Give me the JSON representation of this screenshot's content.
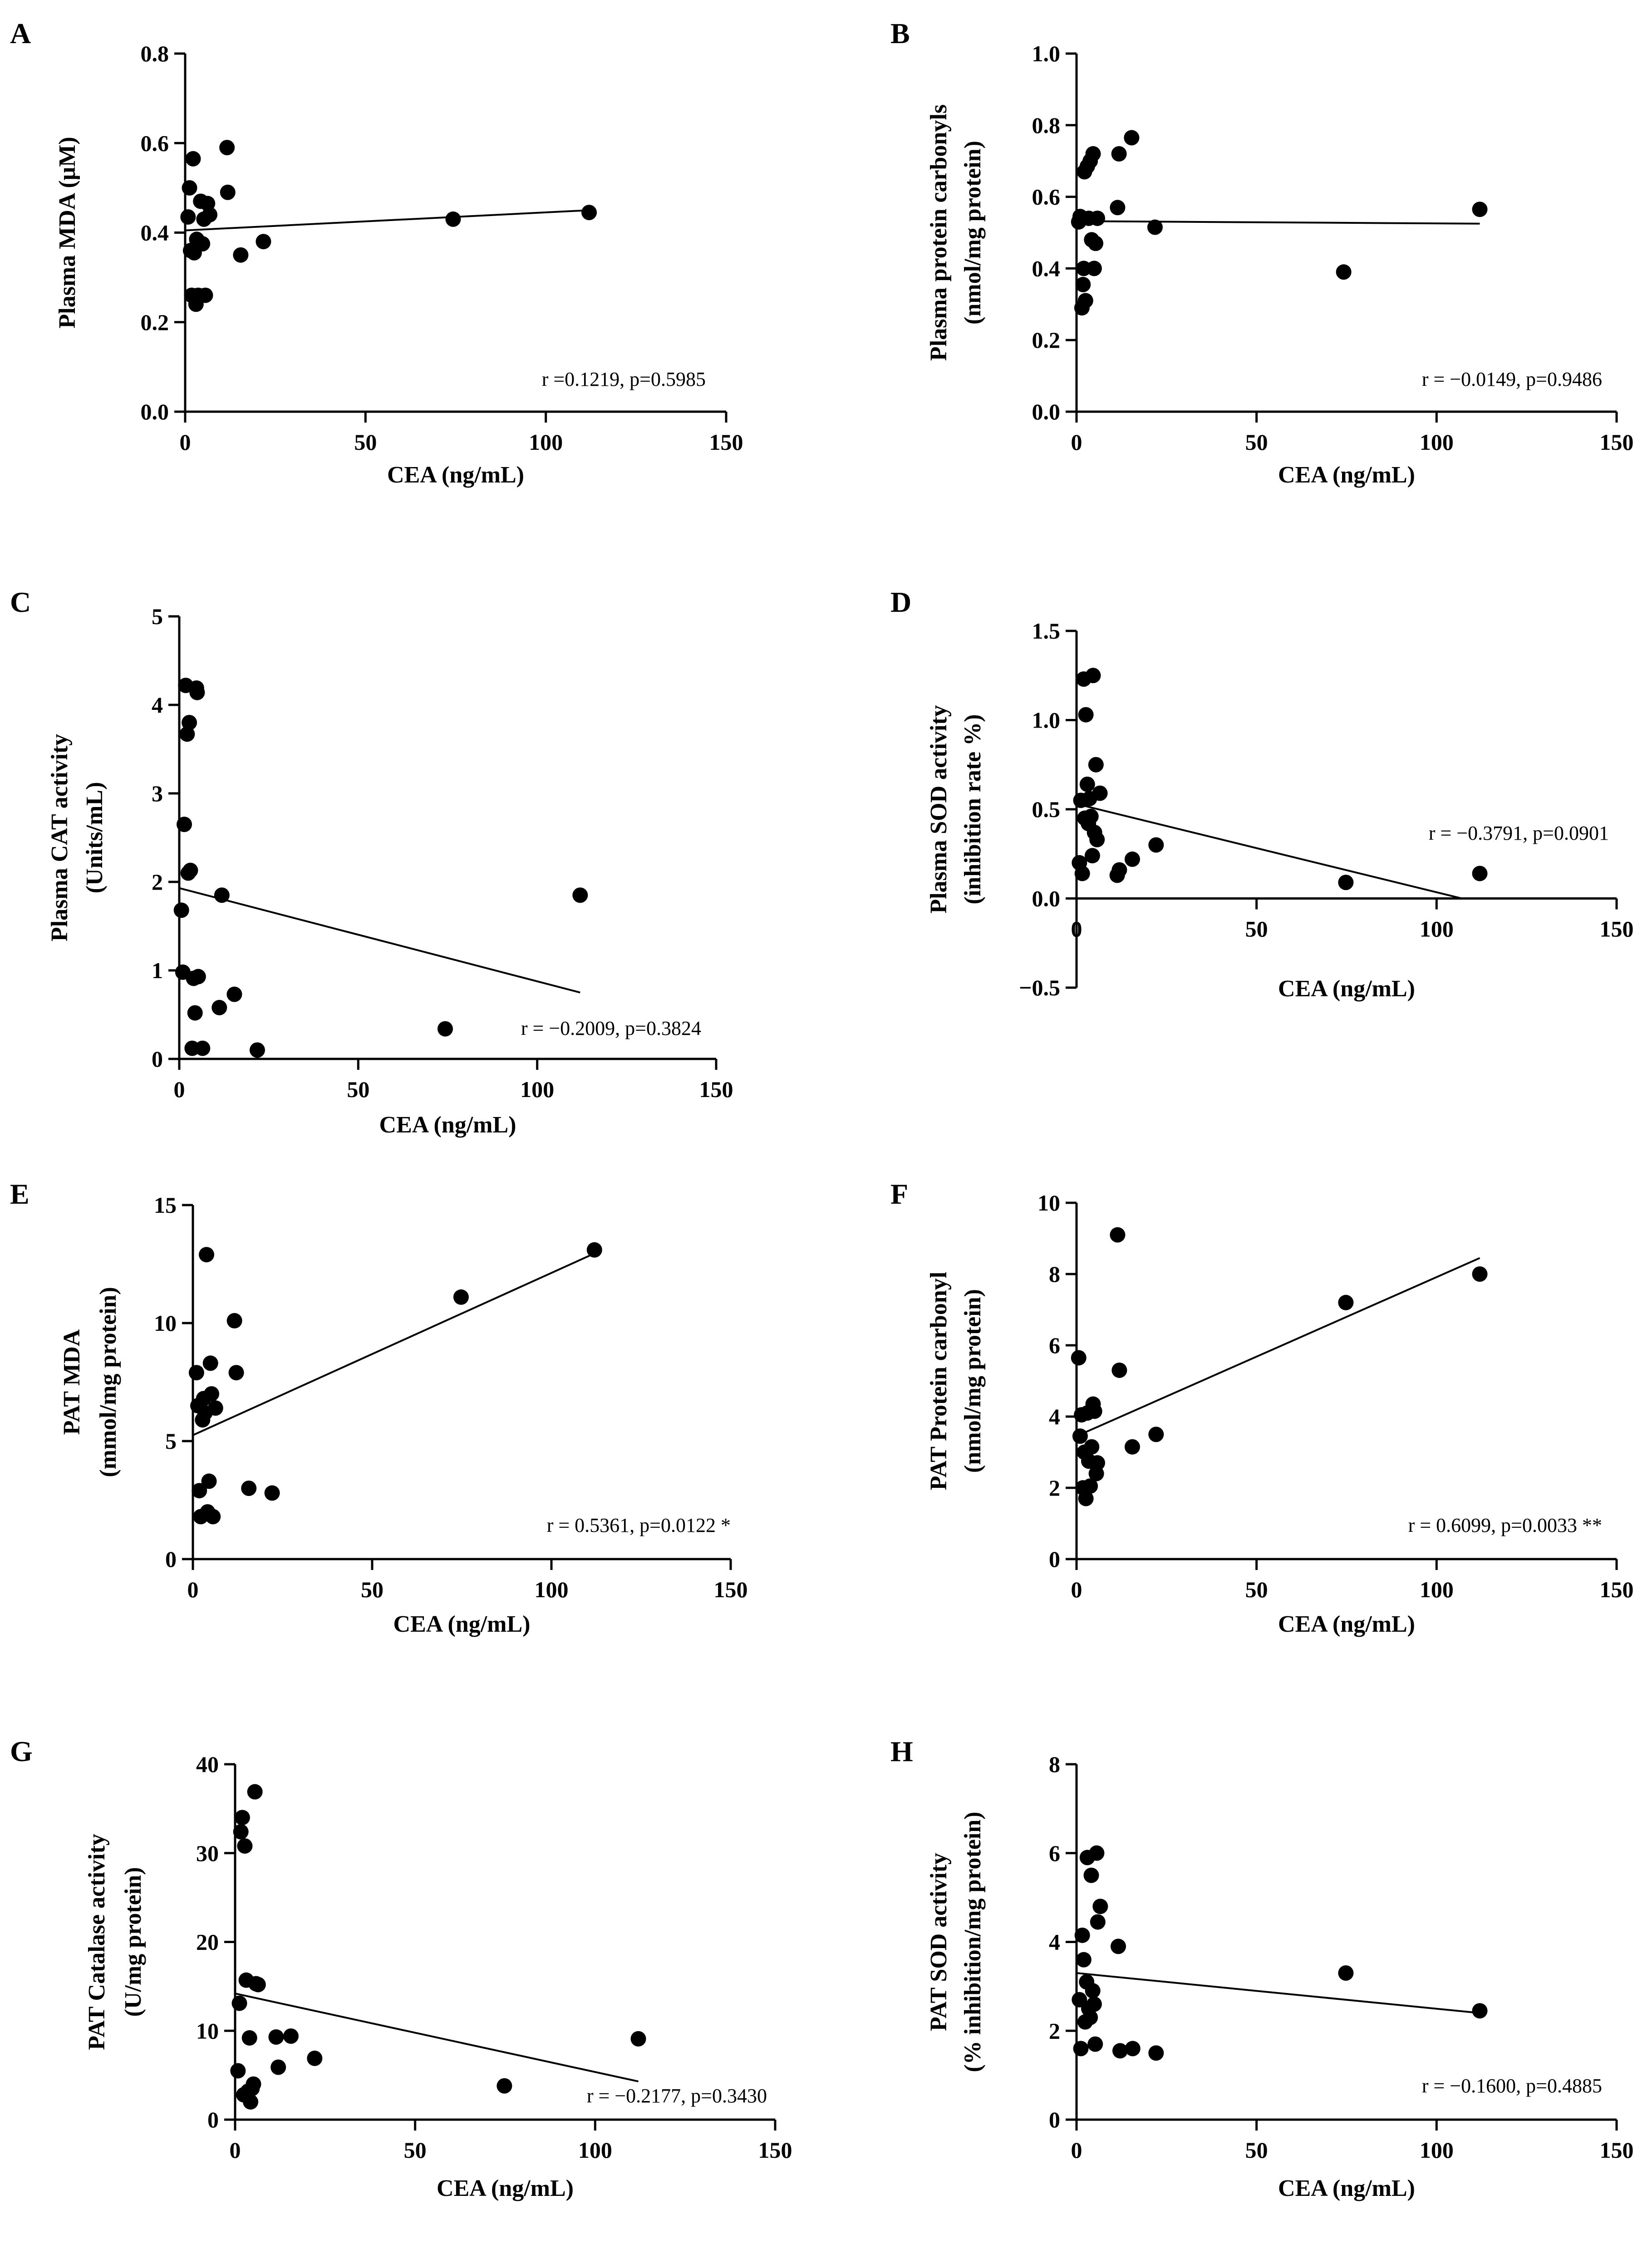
{
  "chart_data": [
    {
      "panel": "A",
      "type": "scatter",
      "xlabel": "CEA (ng/mL)",
      "ylabel": [
        "Plasma MDA (μM)"
      ],
      "xlim": [
        0,
        150
      ],
      "ylim": [
        0,
        0.8
      ],
      "xticks": [
        0,
        50,
        100,
        150
      ],
      "yticks": [
        0.0,
        0.2,
        0.4,
        0.6,
        0.8
      ],
      "ytick_labels": [
        "0.0",
        "0.2",
        "0.4",
        "0.6",
        "0.8"
      ],
      "annotation": "r =0.1219, p=0.5985",
      "points": [
        [
          0.8,
          0.435
        ],
        [
          1.2,
          0.5
        ],
        [
          1.5,
          0.36
        ],
        [
          1.8,
          0.26
        ],
        [
          2.2,
          0.565
        ],
        [
          2.5,
          0.355
        ],
        [
          3.0,
          0.24
        ],
        [
          3.2,
          0.385
        ],
        [
          3.6,
          0.26
        ],
        [
          4.3,
          0.47
        ],
        [
          4.8,
          0.375
        ],
        [
          5.2,
          0.43
        ],
        [
          5.6,
          0.26
        ],
        [
          6.2,
          0.465
        ],
        [
          6.8,
          0.44
        ],
        [
          11.6,
          0.59
        ],
        [
          11.8,
          0.49
        ],
        [
          15.4,
          0.35
        ],
        [
          21.7,
          0.38
        ],
        [
          74.3,
          0.43
        ],
        [
          112,
          0.445
        ]
      ],
      "fit": [
        [
          0,
          0.405
        ],
        [
          112,
          0.45
        ]
      ]
    },
    {
      "panel": "B",
      "type": "scatter",
      "xlabel": "CEA (ng/mL)",
      "ylabel": [
        "Plasma protein carbonyls",
        "(nmol/mg protein)"
      ],
      "xlim": [
        0,
        150
      ],
      "ylim": [
        0,
        1.0
      ],
      "xticks": [
        0,
        50,
        100,
        150
      ],
      "yticks": [
        0.0,
        0.2,
        0.4,
        0.6,
        0.8,
        1.0
      ],
      "ytick_labels": [
        "0.0",
        "0.2",
        "0.4",
        "0.6",
        "0.8",
        "1.0"
      ],
      "annotation": "r = −0.0149, p=0.9486",
      "points": [
        [
          0.6,
          0.53
        ],
        [
          1.0,
          0.545
        ],
        [
          1.5,
          0.29
        ],
        [
          1.8,
          0.355
        ],
        [
          2.0,
          0.4
        ],
        [
          2.2,
          0.67
        ],
        [
          2.5,
          0.31
        ],
        [
          3.0,
          0.685
        ],
        [
          3.4,
          0.54
        ],
        [
          3.8,
          0.7
        ],
        [
          4.2,
          0.48
        ],
        [
          4.6,
          0.72
        ],
        [
          4.9,
          0.4
        ],
        [
          5.3,
          0.47
        ],
        [
          5.8,
          0.54
        ],
        [
          11.4,
          0.57
        ],
        [
          11.8,
          0.72
        ],
        [
          15.3,
          0.765
        ],
        [
          21.8,
          0.515
        ],
        [
          74.2,
          0.39
        ],
        [
          112,
          0.565
        ]
      ],
      "fit": [
        [
          0,
          0.532
        ],
        [
          112,
          0.525
        ]
      ]
    },
    {
      "panel": "C",
      "type": "scatter",
      "xlabel": "CEA (ng/mL)",
      "ylabel": [
        "Plasma CAT activity",
        "(Units/mL)"
      ],
      "xlim": [
        0,
        150
      ],
      "ylim": [
        0,
        5
      ],
      "xticks": [
        0,
        50,
        100,
        150
      ],
      "yticks": [
        0,
        1,
        2,
        3,
        4,
        5
      ],
      "ytick_labels": [
        "0",
        "1",
        "2",
        "3",
        "4",
        "5"
      ],
      "annotation": "r = −0.2009, p=0.3824",
      "points": [
        [
          0.6,
          1.68
        ],
        [
          1.0,
          0.98
        ],
        [
          1.4,
          2.65
        ],
        [
          1.8,
          4.22
        ],
        [
          2.2,
          3.67
        ],
        [
          2.5,
          2.1
        ],
        [
          2.8,
          3.8
        ],
        [
          3.1,
          2.13
        ],
        [
          3.6,
          0.12
        ],
        [
          4.0,
          0.91
        ],
        [
          4.4,
          0.52
        ],
        [
          4.8,
          4.19
        ],
        [
          5.0,
          4.14
        ],
        [
          5.3,
          0.93
        ],
        [
          6.5,
          0.12
        ],
        [
          11.2,
          0.58
        ],
        [
          11.9,
          1.85
        ],
        [
          15.4,
          0.73
        ],
        [
          21.8,
          0.1
        ],
        [
          74.3,
          0.34
        ],
        [
          112,
          1.85
        ]
      ],
      "fit": [
        [
          0,
          1.93
        ],
        [
          112,
          0.75
        ]
      ]
    },
    {
      "panel": "D",
      "type": "scatter",
      "xlabel": "CEA (ng/mL)",
      "ylabel": [
        "Plasma SOD activity",
        "(inhibition rate %)"
      ],
      "xlim": [
        0,
        150
      ],
      "ylim": [
        -0.5,
        1.5
      ],
      "xticks": [
        0,
        50,
        100,
        150
      ],
      "yticks": [
        -0.5,
        0.0,
        0.5,
        1.0,
        1.5
      ],
      "ytick_labels": [
        "−0.5",
        "0.0",
        "0.5",
        "1.0",
        "1.5"
      ],
      "annotation": "r = −0.3791, p=0.0901",
      "points": [
        [
          0.8,
          0.2
        ],
        [
          1.2,
          0.55
        ],
        [
          1.6,
          0.14
        ],
        [
          2.0,
          1.23
        ],
        [
          2.3,
          0.45
        ],
        [
          2.6,
          1.03
        ],
        [
          3.0,
          0.64
        ],
        [
          3.3,
          0.42
        ],
        [
          3.6,
          0.56
        ],
        [
          4.0,
          0.46
        ],
        [
          4.4,
          0.24
        ],
        [
          4.6,
          1.25
        ],
        [
          5.0,
          0.37
        ],
        [
          5.4,
          0.75
        ],
        [
          5.7,
          0.33
        ],
        [
          6.5,
          0.59
        ],
        [
          11.3,
          0.13
        ],
        [
          11.9,
          0.16
        ],
        [
          15.5,
          0.22
        ],
        [
          22.1,
          0.3
        ],
        [
          74.8,
          0.09
        ],
        [
          112,
          0.14
        ]
      ],
      "fit": [
        [
          0,
          0.53
        ],
        [
          107,
          0.0
        ]
      ]
    },
    {
      "panel": "E",
      "type": "scatter",
      "xlabel": "CEA (ng/mL)",
      "ylabel": [
        "PAT MDA",
        "(mmol/mg protein)"
      ],
      "xlim": [
        0,
        150
      ],
      "ylim": [
        0,
        15
      ],
      "xticks": [
        0,
        50,
        100,
        150
      ],
      "yticks": [
        0,
        5,
        10,
        15
      ],
      "ytick_labels": [
        "0",
        "5",
        "10",
        "15"
      ],
      "annotation": "r = 0.5361, p=0.0122 *",
      "points": [
        [
          1.0,
          7.9
        ],
        [
          1.4,
          6.5
        ],
        [
          1.8,
          2.9
        ],
        [
          2.2,
          1.8
        ],
        [
          2.7,
          5.9
        ],
        [
          3.0,
          6.8
        ],
        [
          3.4,
          6.2
        ],
        [
          3.8,
          12.9
        ],
        [
          4.1,
          2.0
        ],
        [
          4.5,
          3.3
        ],
        [
          4.9,
          8.3
        ],
        [
          5.2,
          7.0
        ],
        [
          5.6,
          1.8
        ],
        [
          6.3,
          6.4
        ],
        [
          11.6,
          10.1
        ],
        [
          12.1,
          7.9
        ],
        [
          15.6,
          3.0
        ],
        [
          22.1,
          2.8
        ],
        [
          74.8,
          11.1
        ],
        [
          112,
          13.1
        ]
      ],
      "fit": [
        [
          0,
          5.25
        ],
        [
          112,
          12.95
        ]
      ]
    },
    {
      "panel": "F",
      "type": "scatter",
      "xlabel": "CEA (ng/mL)",
      "ylabel": [
        "PAT Protein carbonyl",
        "(nmol/mg protein)"
      ],
      "xlim": [
        0,
        150
      ],
      "ylim": [
        0,
        10
      ],
      "xticks": [
        0,
        50,
        100,
        150
      ],
      "yticks": [
        0,
        2,
        4,
        6,
        8,
        10
      ],
      "ytick_labels": [
        "0",
        "2",
        "4",
        "6",
        "8",
        "10"
      ],
      "annotation": "r = 0.6099, p=0.0033 **",
      "points": [
        [
          0.6,
          5.65
        ],
        [
          1.0,
          3.45
        ],
        [
          1.4,
          4.05
        ],
        [
          1.8,
          2.0
        ],
        [
          2.2,
          3.0
        ],
        [
          2.6,
          1.7
        ],
        [
          3.0,
          4.1
        ],
        [
          3.4,
          2.75
        ],
        [
          3.8,
          2.05
        ],
        [
          4.2,
          3.15
        ],
        [
          4.6,
          4.35
        ],
        [
          5.0,
          4.15
        ],
        [
          5.5,
          2.4
        ],
        [
          5.8,
          2.7
        ],
        [
          11.4,
          9.1
        ],
        [
          11.9,
          5.3
        ],
        [
          15.5,
          3.15
        ],
        [
          22.1,
          3.5
        ],
        [
          74.8,
          7.2
        ],
        [
          112,
          8.0
        ]
      ],
      "fit": [
        [
          0,
          3.45
        ],
        [
          112,
          8.45
        ]
      ]
    },
    {
      "panel": "G",
      "type": "scatter",
      "xlabel": "CEA (ng/mL)",
      "ylabel": [
        "PAT Catalase activity",
        "(U/mg protein)"
      ],
      "xlim": [
        0,
        150
      ],
      "ylim": [
        0,
        40
      ],
      "xticks": [
        0,
        50,
        100,
        150
      ],
      "yticks": [
        0,
        10,
        20,
        30,
        40
      ],
      "ytick_labels": [
        "0",
        "10",
        "20",
        "30",
        "40"
      ],
      "annotation": "r = −0.2177, p=0.3430",
      "points": [
        [
          0.8,
          5.5
        ],
        [
          1.2,
          13.1
        ],
        [
          1.6,
          32.4
        ],
        [
          2.0,
          34.0
        ],
        [
          2.4,
          2.8
        ],
        [
          2.7,
          30.8
        ],
        [
          3.1,
          15.7
        ],
        [
          3.6,
          3.2
        ],
        [
          4.0,
          9.2
        ],
        [
          4.3,
          2.0
        ],
        [
          4.7,
          3.5
        ],
        [
          5.1,
          4.0
        ],
        [
          5.5,
          36.9
        ],
        [
          5.8,
          15.3
        ],
        [
          6.4,
          15.2
        ],
        [
          11.4,
          9.3
        ],
        [
          12.0,
          5.9
        ],
        [
          15.5,
          9.4
        ],
        [
          22.1,
          6.9
        ],
        [
          74.8,
          3.8
        ],
        [
          112,
          9.1
        ]
      ],
      "fit": [
        [
          0,
          14.2
        ],
        [
          112,
          4.3
        ]
      ]
    },
    {
      "panel": "H",
      "type": "scatter",
      "xlabel": "CEA (ng/mL)",
      "ylabel": [
        "PAT SOD activity",
        "(% inhibition/mg protein)"
      ],
      "xlim": [
        0,
        150
      ],
      "ylim": [
        0,
        8
      ],
      "xticks": [
        0,
        50,
        100,
        150
      ],
      "yticks": [
        0,
        2,
        4,
        6,
        8
      ],
      "ytick_labels": [
        "0",
        "2",
        "4",
        "6",
        "8"
      ],
      "annotation": "r = −0.1600, p=0.4885",
      "points": [
        [
          0.8,
          2.7
        ],
        [
          1.2,
          1.6
        ],
        [
          1.6,
          4.15
        ],
        [
          2.0,
          3.6
        ],
        [
          2.4,
          2.2
        ],
        [
          2.8,
          3.1
        ],
        [
          3.0,
          5.9
        ],
        [
          3.4,
          2.5
        ],
        [
          3.8,
          2.3
        ],
        [
          4.1,
          5.5
        ],
        [
          4.5,
          2.9
        ],
        [
          4.9,
          2.6
        ],
        [
          5.2,
          1.7
        ],
        [
          5.6,
          6.0
        ],
        [
          5.9,
          4.45
        ],
        [
          6.6,
          4.8
        ],
        [
          11.6,
          3.9
        ],
        [
          12.1,
          1.55
        ],
        [
          15.6,
          1.6
        ],
        [
          22.1,
          1.5
        ],
        [
          74.8,
          3.3
        ],
        [
          112,
          2.45
        ]
      ],
      "fit": [
        [
          0,
          3.3
        ],
        [
          112,
          2.4
        ]
      ]
    }
  ]
}
